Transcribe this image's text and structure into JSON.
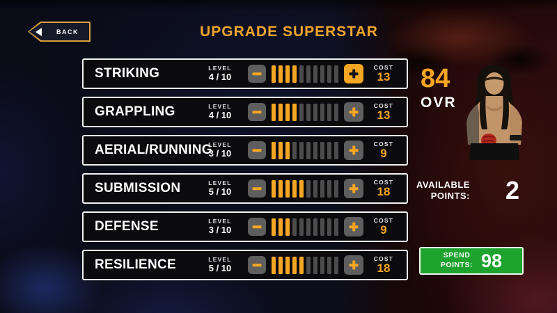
{
  "header": {
    "back_label": "BACK",
    "title": "UPGRADE SUPERSTAR"
  },
  "stats": {
    "level_label": "LEVEL",
    "cost_label": "COST",
    "max_level": 10,
    "rows": [
      {
        "name": "STRIKING",
        "level": 4,
        "level_display": "4 / 10",
        "cost": "13",
        "plus_highlighted": true
      },
      {
        "name": "GRAPPLING",
        "level": 4,
        "level_display": "4 / 10",
        "cost": "13",
        "plus_highlighted": false
      },
      {
        "name": "AERIAL/RUNNING",
        "level": 3,
        "level_display": "3 / 10",
        "cost": "9",
        "plus_highlighted": false
      },
      {
        "name": "SUBMISSION",
        "level": 5,
        "level_display": "5 / 10",
        "cost": "18",
        "plus_highlighted": false
      },
      {
        "name": "DEFENSE",
        "level": 3,
        "level_display": "3 / 10",
        "cost": "9",
        "plus_highlighted": false
      },
      {
        "name": "RESILIENCE",
        "level": 5,
        "level_display": "5 / 10",
        "cost": "18",
        "plus_highlighted": false
      }
    ]
  },
  "superstar": {
    "ovr_value": "84",
    "ovr_label": "OVR"
  },
  "points": {
    "available_label": "AVAILABLE\nPOINTS:",
    "available_value": "2",
    "spend_label": "SPEND\nPOINTS:",
    "spend_value": "98"
  },
  "colors": {
    "accent_gold": "#F5A623",
    "title_gold": "#F0A52D",
    "spend_green": "#1EA32E",
    "row_background": "#0B0B0D",
    "row_border": "#F2F2F2",
    "segment_filled": "#F5A623",
    "segment_empty": "#4C4C4C",
    "button_gray": "#5E5E5E",
    "background_left_blue": "#0A0C18",
    "background_right_red": "#1E0707"
  }
}
